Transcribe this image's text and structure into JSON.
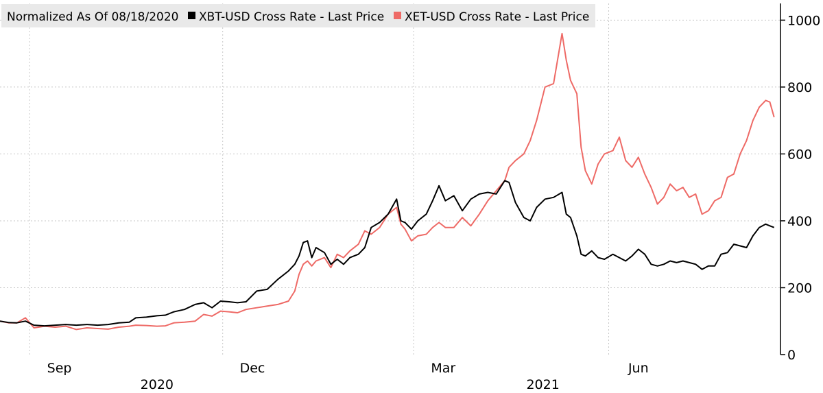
{
  "chart_data": {
    "type": "line",
    "legend_placement": "top-left",
    "legend_title": "Normalized As Of 08/18/2020",
    "grid": true,
    "y_axis_side": "right",
    "ylim": [
      0,
      1050
    ],
    "y_ticks": [
      0,
      200,
      400,
      600,
      800,
      1000
    ],
    "xlim": [
      "2020-08-18",
      "2021-08-21"
    ],
    "x_tick_labels": [
      {
        "label": "Sep",
        "date": "2020-09-15"
      },
      {
        "label": "Dec",
        "date": "2020-12-15"
      },
      {
        "label": "Mar",
        "date": "2021-03-15"
      },
      {
        "label": "Jun",
        "date": "2021-06-15"
      }
    ],
    "year_labels": [
      {
        "label": "2020",
        "date": "2020-10-31"
      },
      {
        "label": "2021",
        "date": "2021-05-01"
      }
    ],
    "gridline_dates": [
      "2020-09-01",
      "2020-12-01",
      "2021-03-01",
      "2021-06-01"
    ],
    "series": [
      {
        "name": "XBT-USD Cross Rate - Last Price",
        "color": "#000000",
        "points": [
          [
            "2020-08-18",
            100
          ],
          [
            "2020-08-22",
            96
          ],
          [
            "2020-08-26",
            95
          ],
          [
            "2020-08-30",
            100
          ],
          [
            "2020-09-03",
            88
          ],
          [
            "2020-09-08",
            86
          ],
          [
            "2020-09-13",
            88
          ],
          [
            "2020-09-18",
            90
          ],
          [
            "2020-09-23",
            88
          ],
          [
            "2020-09-28",
            90
          ],
          [
            "2020-10-03",
            88
          ],
          [
            "2020-10-08",
            90
          ],
          [
            "2020-10-13",
            95
          ],
          [
            "2020-10-18",
            97
          ],
          [
            "2020-10-21",
            110
          ],
          [
            "2020-10-26",
            112
          ],
          [
            "2020-10-31",
            116
          ],
          [
            "2020-11-04",
            118
          ],
          [
            "2020-11-08",
            128
          ],
          [
            "2020-11-13",
            135
          ],
          [
            "2020-11-18",
            150
          ],
          [
            "2020-11-22",
            155
          ],
          [
            "2020-11-26",
            140
          ],
          [
            "2020-11-30",
            160
          ],
          [
            "2020-12-04",
            158
          ],
          [
            "2020-12-08",
            155
          ],
          [
            "2020-12-12",
            158
          ],
          [
            "2020-12-17",
            190
          ],
          [
            "2020-12-22",
            195
          ],
          [
            "2020-12-27",
            225
          ],
          [
            "2021-01-01",
            250
          ],
          [
            "2021-01-04",
            270
          ],
          [
            "2021-01-06",
            295
          ],
          [
            "2021-01-08",
            335
          ],
          [
            "2021-01-10",
            340
          ],
          [
            "2021-01-12",
            290
          ],
          [
            "2021-01-14",
            320
          ],
          [
            "2021-01-18",
            305
          ],
          [
            "2021-01-21",
            270
          ],
          [
            "2021-01-24",
            285
          ],
          [
            "2021-01-27",
            270
          ],
          [
            "2021-01-30",
            290
          ],
          [
            "2021-02-03",
            300
          ],
          [
            "2021-02-06",
            320
          ],
          [
            "2021-02-09",
            380
          ],
          [
            "2021-02-13",
            395
          ],
          [
            "2021-02-17",
            420
          ],
          [
            "2021-02-21",
            465
          ],
          [
            "2021-02-23",
            400
          ],
          [
            "2021-02-25",
            395
          ],
          [
            "2021-02-28",
            375
          ],
          [
            "2021-03-03",
            400
          ],
          [
            "2021-03-07",
            420
          ],
          [
            "2021-03-10",
            460
          ],
          [
            "2021-03-13",
            505
          ],
          [
            "2021-03-16",
            460
          ],
          [
            "2021-03-20",
            475
          ],
          [
            "2021-03-24",
            430
          ],
          [
            "2021-03-28",
            465
          ],
          [
            "2021-04-01",
            480
          ],
          [
            "2021-04-05",
            485
          ],
          [
            "2021-04-09",
            480
          ],
          [
            "2021-04-13",
            520
          ],
          [
            "2021-04-15",
            515
          ],
          [
            "2021-04-18",
            455
          ],
          [
            "2021-04-22",
            410
          ],
          [
            "2021-04-25",
            400
          ],
          [
            "2021-04-28",
            440
          ],
          [
            "2021-05-02",
            465
          ],
          [
            "2021-05-06",
            470
          ],
          [
            "2021-05-10",
            485
          ],
          [
            "2021-05-12",
            420
          ],
          [
            "2021-05-14",
            410
          ],
          [
            "2021-05-17",
            355
          ],
          [
            "2021-05-19",
            300
          ],
          [
            "2021-05-21",
            295
          ],
          [
            "2021-05-24",
            310
          ],
          [
            "2021-05-27",
            290
          ],
          [
            "2021-05-30",
            285
          ],
          [
            "2021-06-03",
            300
          ],
          [
            "2021-06-06",
            290
          ],
          [
            "2021-06-09",
            280
          ],
          [
            "2021-06-12",
            295
          ],
          [
            "2021-06-15",
            315
          ],
          [
            "2021-06-18",
            300
          ],
          [
            "2021-06-21",
            270
          ],
          [
            "2021-06-24",
            265
          ],
          [
            "2021-06-27",
            270
          ],
          [
            "2021-06-30",
            280
          ],
          [
            "2021-07-03",
            275
          ],
          [
            "2021-07-06",
            280
          ],
          [
            "2021-07-09",
            275
          ],
          [
            "2021-07-12",
            270
          ],
          [
            "2021-07-15",
            255
          ],
          [
            "2021-07-18",
            265
          ],
          [
            "2021-07-21",
            265
          ],
          [
            "2021-07-24",
            300
          ],
          [
            "2021-07-27",
            305
          ],
          [
            "2021-07-30",
            330
          ],
          [
            "2021-08-02",
            325
          ],
          [
            "2021-08-05",
            320
          ],
          [
            "2021-08-08",
            355
          ],
          [
            "2021-08-11",
            380
          ],
          [
            "2021-08-14",
            390
          ],
          [
            "2021-08-16",
            385
          ],
          [
            "2021-08-18",
            380
          ]
        ]
      },
      {
        "name": "XET-USD Cross Rate - Last Price",
        "color": "#ee6a66",
        "points": [
          [
            "2020-08-18",
            100
          ],
          [
            "2020-08-22",
            95
          ],
          [
            "2020-08-26",
            95
          ],
          [
            "2020-08-30",
            110
          ],
          [
            "2020-09-03",
            80
          ],
          [
            "2020-09-08",
            85
          ],
          [
            "2020-09-13",
            82
          ],
          [
            "2020-09-18",
            85
          ],
          [
            "2020-09-23",
            75
          ],
          [
            "2020-09-28",
            80
          ],
          [
            "2020-10-03",
            78
          ],
          [
            "2020-10-08",
            76
          ],
          [
            "2020-10-13",
            82
          ],
          [
            "2020-10-18",
            85
          ],
          [
            "2020-10-21",
            88
          ],
          [
            "2020-10-26",
            87
          ],
          [
            "2020-10-31",
            85
          ],
          [
            "2020-11-04",
            86
          ],
          [
            "2020-11-08",
            95
          ],
          [
            "2020-11-13",
            97
          ],
          [
            "2020-11-18",
            100
          ],
          [
            "2020-11-22",
            120
          ],
          [
            "2020-11-26",
            115
          ],
          [
            "2020-11-30",
            130
          ],
          [
            "2020-12-04",
            128
          ],
          [
            "2020-12-08",
            125
          ],
          [
            "2020-12-12",
            135
          ],
          [
            "2020-12-17",
            140
          ],
          [
            "2020-12-22",
            145
          ],
          [
            "2020-12-27",
            150
          ],
          [
            "2021-01-01",
            160
          ],
          [
            "2021-01-04",
            190
          ],
          [
            "2021-01-06",
            240
          ],
          [
            "2021-01-08",
            270
          ],
          [
            "2021-01-10",
            280
          ],
          [
            "2021-01-12",
            265
          ],
          [
            "2021-01-14",
            280
          ],
          [
            "2021-01-18",
            290
          ],
          [
            "2021-01-21",
            260
          ],
          [
            "2021-01-24",
            300
          ],
          [
            "2021-01-27",
            290
          ],
          [
            "2021-01-30",
            310
          ],
          [
            "2021-02-03",
            330
          ],
          [
            "2021-02-06",
            370
          ],
          [
            "2021-02-09",
            360
          ],
          [
            "2021-02-13",
            380
          ],
          [
            "2021-02-17",
            420
          ],
          [
            "2021-02-21",
            440
          ],
          [
            "2021-02-23",
            390
          ],
          [
            "2021-02-25",
            375
          ],
          [
            "2021-02-28",
            340
          ],
          [
            "2021-03-03",
            355
          ],
          [
            "2021-03-07",
            360
          ],
          [
            "2021-03-10",
            380
          ],
          [
            "2021-03-13",
            395
          ],
          [
            "2021-03-16",
            380
          ],
          [
            "2021-03-20",
            380
          ],
          [
            "2021-03-24",
            410
          ],
          [
            "2021-03-28",
            385
          ],
          [
            "2021-04-01",
            420
          ],
          [
            "2021-04-05",
            460
          ],
          [
            "2021-04-09",
            490
          ],
          [
            "2021-04-13",
            520
          ],
          [
            "2021-04-15",
            560
          ],
          [
            "2021-04-18",
            580
          ],
          [
            "2021-04-22",
            600
          ],
          [
            "2021-04-25",
            640
          ],
          [
            "2021-04-28",
            700
          ],
          [
            "2021-05-02",
            800
          ],
          [
            "2021-05-06",
            810
          ],
          [
            "2021-05-10",
            960
          ],
          [
            "2021-05-12",
            880
          ],
          [
            "2021-05-14",
            820
          ],
          [
            "2021-05-17",
            780
          ],
          [
            "2021-05-19",
            620
          ],
          [
            "2021-05-21",
            550
          ],
          [
            "2021-05-24",
            510
          ],
          [
            "2021-05-27",
            570
          ],
          [
            "2021-05-30",
            600
          ],
          [
            "2021-06-03",
            610
          ],
          [
            "2021-06-06",
            650
          ],
          [
            "2021-06-09",
            580
          ],
          [
            "2021-06-12",
            560
          ],
          [
            "2021-06-15",
            590
          ],
          [
            "2021-06-18",
            540
          ],
          [
            "2021-06-21",
            500
          ],
          [
            "2021-06-24",
            450
          ],
          [
            "2021-06-27",
            470
          ],
          [
            "2021-06-30",
            510
          ],
          [
            "2021-07-03",
            490
          ],
          [
            "2021-07-06",
            500
          ],
          [
            "2021-07-09",
            470
          ],
          [
            "2021-07-12",
            480
          ],
          [
            "2021-07-15",
            420
          ],
          [
            "2021-07-18",
            430
          ],
          [
            "2021-07-21",
            460
          ],
          [
            "2021-07-24",
            470
          ],
          [
            "2021-07-27",
            530
          ],
          [
            "2021-07-30",
            540
          ],
          [
            "2021-08-02",
            600
          ],
          [
            "2021-08-05",
            640
          ],
          [
            "2021-08-08",
            700
          ],
          [
            "2021-08-11",
            740
          ],
          [
            "2021-08-14",
            760
          ],
          [
            "2021-08-16",
            755
          ],
          [
            "2021-08-18",
            710
          ]
        ]
      }
    ]
  }
}
